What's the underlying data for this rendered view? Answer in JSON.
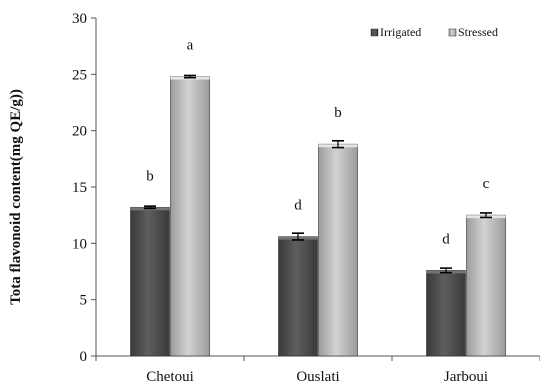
{
  "chart_data": {
    "type": "bar",
    "title": "",
    "xlabel": "",
    "ylabel": "Tota flavonoid content(mg QE/g))",
    "categories": [
      "Chetoui",
      "Ouslati",
      "Jarboui"
    ],
    "ylim": [
      0,
      30
    ],
    "yticks": [
      0,
      5,
      10,
      15,
      20,
      25,
      30
    ],
    "legend_position": "top-right",
    "grid": false,
    "series": [
      {
        "name": "Irrigated",
        "color": "#4a4a4a",
        "values": [
          13.2,
          10.6,
          7.6
        ],
        "errors": [
          0.1,
          0.3,
          0.2
        ],
        "labels": [
          "b",
          "d",
          "d"
        ]
      },
      {
        "name": "Stressed",
        "color": "#b8b8b8",
        "values": [
          24.8,
          18.8,
          12.5
        ],
        "errors": [
          0.1,
          0.3,
          0.2
        ],
        "labels": [
          "a",
          "b",
          "c"
        ]
      }
    ]
  }
}
